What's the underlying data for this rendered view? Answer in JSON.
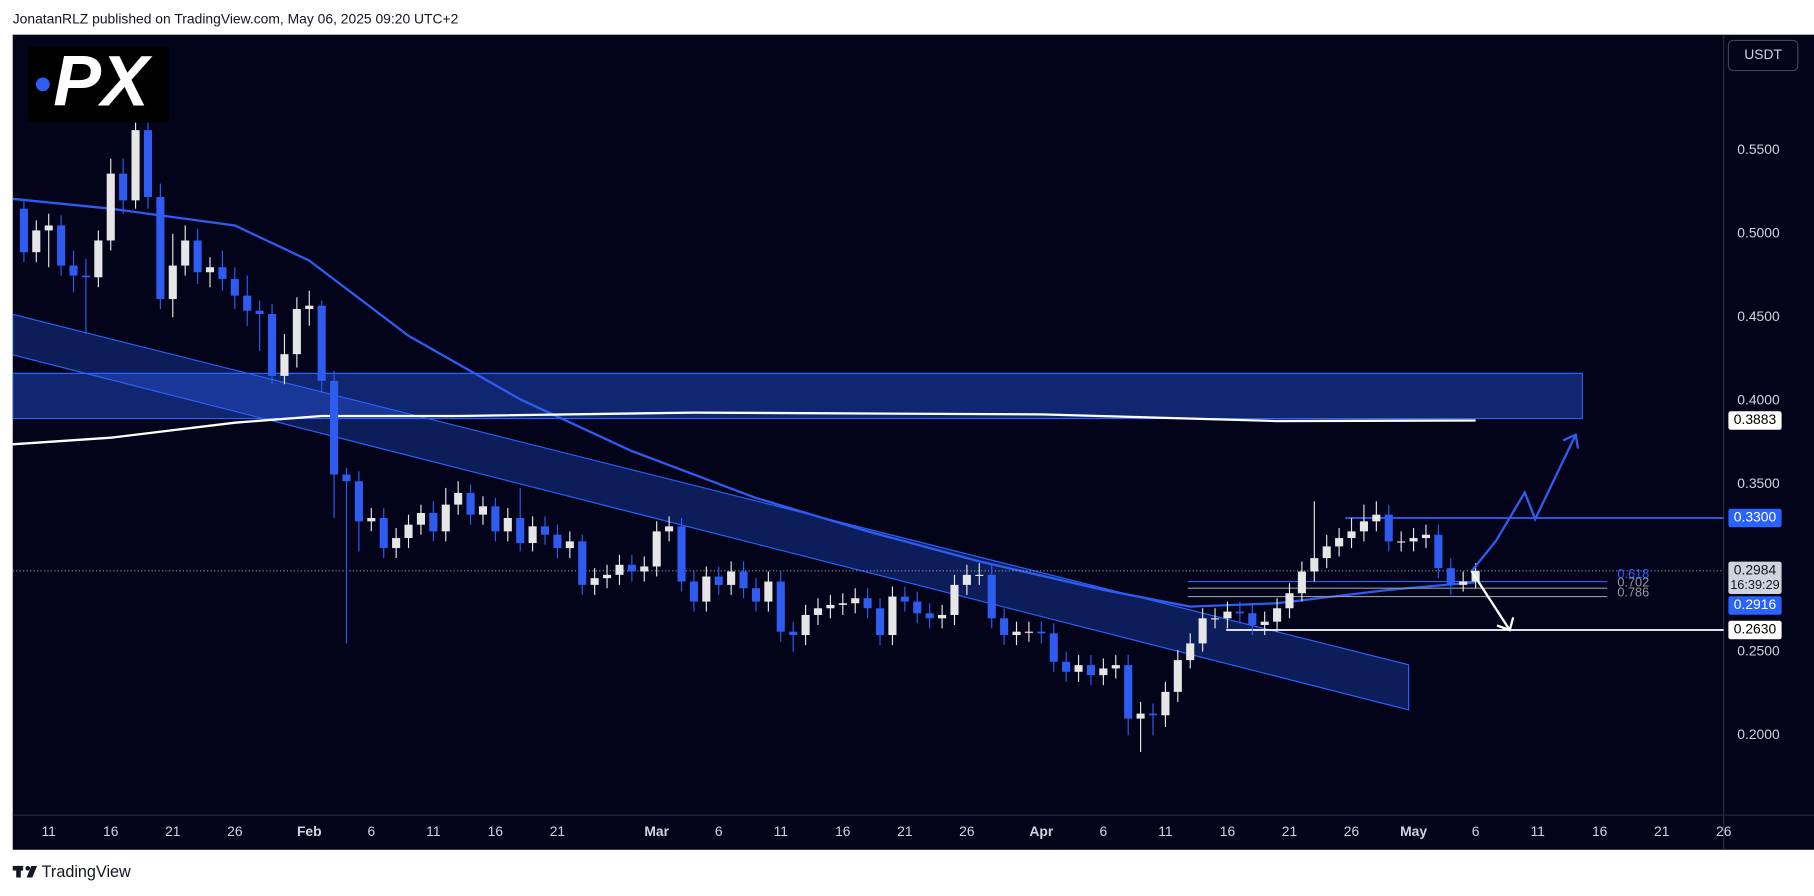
{
  "header": {
    "text": "JonatanRLZ published on TradingView.com, May 06, 2025 09:20 UTC+2"
  },
  "logo_text": "PX",
  "currency": "USDT",
  "footer": {
    "brand": "TradingView"
  },
  "chart_data": {
    "type": "candlestick",
    "up_color": "#e6e6e6",
    "down_color": "#2f5cf0",
    "x": [
      9,
      10,
      11,
      12,
      13,
      14,
      15,
      16,
      17,
      18,
      19,
      20,
      21,
      22,
      23,
      24,
      25,
      26,
      27,
      28,
      29,
      30,
      31,
      32,
      33,
      34,
      35,
      36,
      37,
      38,
      39,
      40,
      41,
      42,
      43,
      44,
      45,
      46,
      47,
      48,
      49,
      50,
      51,
      52,
      53,
      54,
      55,
      56,
      57,
      58,
      59,
      60,
      61,
      62,
      63,
      64,
      65,
      66,
      67,
      68,
      69,
      70,
      71,
      72,
      73,
      74,
      75,
      76,
      77,
      78,
      79,
      80,
      81,
      82,
      83,
      84,
      85,
      86,
      87,
      88,
      89,
      90,
      91,
      92,
      93,
      94,
      95,
      96,
      97,
      98,
      99,
      100,
      101,
      102,
      103,
      104,
      105,
      106,
      107,
      108,
      109,
      110,
      111,
      112,
      113,
      114,
      115,
      116,
      117,
      118,
      119,
      120,
      121,
      122,
      123,
      124,
      125,
      126
    ],
    "open": [
      0.515,
      0.489,
      0.502,
      0.505,
      0.481,
      0.475,
      0.474,
      0.496,
      0.536,
      0.52,
      0.562,
      0.522,
      0.461,
      0.481,
      0.496,
      0.477,
      0.48,
      0.473,
      0.463,
      0.454,
      0.452,
      0.415,
      0.428,
      0.455,
      0.457,
      0.412,
      0.356,
      0.352,
      0.328,
      0.33,
      0.312,
      0.318,
      0.326,
      0.333,
      0.322,
      0.338,
      0.345,
      0.332,
      0.337,
      0.322,
      0.33,
      0.315,
      0.325,
      0.32,
      0.312,
      0.316,
      0.29,
      0.294,
      0.296,
      0.302,
      0.298,
      0.301,
      0.322,
      0.325,
      0.292,
      0.28,
      0.295,
      0.29,
      0.298,
      0.288,
      0.28,
      0.292,
      0.262,
      0.26,
      0.272,
      0.276,
      0.278,
      0.279,
      0.282,
      0.276,
      0.26,
      0.283,
      0.28,
      0.273,
      0.27,
      0.272,
      0.29,
      0.296,
      0.296,
      0.27,
      0.26,
      0.262,
      0.262,
      0.261,
      0.244,
      0.238,
      0.242,
      0.236,
      0.24,
      0.242,
      0.21,
      0.213,
      0.212,
      0.226,
      0.245,
      0.255,
      0.27,
      0.27,
      0.274,
      0.273,
      0.266,
      0.268,
      0.276,
      0.285,
      0.298,
      0.306,
      0.313,
      0.318,
      0.322,
      0.328,
      0.332,
      0.316,
      0.316,
      0.318,
      0.32,
      0.3,
      0.29,
      0.292
    ],
    "high": [
      0.521,
      0.508,
      0.512,
      0.511,
      0.49,
      0.485,
      0.502,
      0.545,
      0.545,
      0.575,
      0.57,
      0.53,
      0.5,
      0.505,
      0.503,
      0.486,
      0.49,
      0.48,
      0.475,
      0.46,
      0.458,
      0.44,
      0.462,
      0.466,
      0.46,
      0.418,
      0.36,
      0.358,
      0.336,
      0.336,
      0.324,
      0.332,
      0.338,
      0.34,
      0.348,
      0.352,
      0.35,
      0.343,
      0.342,
      0.336,
      0.348,
      0.331,
      0.331,
      0.326,
      0.322,
      0.32,
      0.3,
      0.302,
      0.308,
      0.308,
      0.307,
      0.328,
      0.331,
      0.33,
      0.298,
      0.301,
      0.301,
      0.304,
      0.304,
      0.294,
      0.298,
      0.298,
      0.268,
      0.278,
      0.282,
      0.284,
      0.285,
      0.288,
      0.288,
      0.282,
      0.289,
      0.289,
      0.286,
      0.279,
      0.278,
      0.296,
      0.302,
      0.303,
      0.302,
      0.276,
      0.268,
      0.268,
      0.268,
      0.267,
      0.25,
      0.248,
      0.248,
      0.246,
      0.248,
      0.248,
      0.22,
      0.219,
      0.232,
      0.251,
      0.261,
      0.276,
      0.276,
      0.28,
      0.28,
      0.279,
      0.274,
      0.282,
      0.291,
      0.304,
      0.34,
      0.32,
      0.324,
      0.33,
      0.338,
      0.34,
      0.338,
      0.322,
      0.324,
      0.326,
      0.326,
      0.306,
      0.298,
      0.303
    ],
    "low": [
      0.483,
      0.483,
      0.48,
      0.475,
      0.465,
      0.44,
      0.468,
      0.49,
      0.512,
      0.515,
      0.515,
      0.455,
      0.45,
      0.475,
      0.47,
      0.468,
      0.466,
      0.455,
      0.445,
      0.43,
      0.41,
      0.41,
      0.42,
      0.445,
      0.405,
      0.33,
      0.255,
      0.31,
      0.322,
      0.306,
      0.306,
      0.312,
      0.32,
      0.316,
      0.316,
      0.332,
      0.326,
      0.326,
      0.316,
      0.316,
      0.31,
      0.31,
      0.314,
      0.306,
      0.306,
      0.284,
      0.284,
      0.288,
      0.29,
      0.292,
      0.292,
      0.295,
      0.316,
      0.286,
      0.274,
      0.274,
      0.284,
      0.284,
      0.282,
      0.274,
      0.274,
      0.256,
      0.25,
      0.254,
      0.266,
      0.27,
      0.272,
      0.273,
      0.27,
      0.254,
      0.254,
      0.274,
      0.267,
      0.264,
      0.264,
      0.266,
      0.284,
      0.29,
      0.264,
      0.254,
      0.254,
      0.256,
      0.255,
      0.238,
      0.232,
      0.232,
      0.23,
      0.23,
      0.234,
      0.2,
      0.19,
      0.2,
      0.205,
      0.22,
      0.24,
      0.25,
      0.264,
      0.264,
      0.267,
      0.26,
      0.26,
      0.262,
      0.27,
      0.28,
      0.292,
      0.3,
      0.307,
      0.312,
      0.316,
      0.322,
      0.31,
      0.31,
      0.31,
      0.312,
      0.294,
      0.284,
      0.286,
      0.288
    ],
    "close": [
      0.489,
      0.502,
      0.505,
      0.481,
      0.475,
      0.474,
      0.496,
      0.536,
      0.52,
      0.562,
      0.522,
      0.461,
      0.481,
      0.496,
      0.477,
      0.48,
      0.473,
      0.463,
      0.454,
      0.452,
      0.415,
      0.428,
      0.455,
      0.457,
      0.412,
      0.356,
      0.352,
      0.328,
      0.33,
      0.312,
      0.318,
      0.326,
      0.333,
      0.322,
      0.338,
      0.345,
      0.332,
      0.337,
      0.322,
      0.33,
      0.315,
      0.325,
      0.32,
      0.312,
      0.316,
      0.29,
      0.294,
      0.296,
      0.302,
      0.298,
      0.301,
      0.322,
      0.325,
      0.292,
      0.28,
      0.295,
      0.29,
      0.298,
      0.288,
      0.28,
      0.292,
      0.262,
      0.26,
      0.272,
      0.276,
      0.278,
      0.279,
      0.282,
      0.276,
      0.26,
      0.283,
      0.28,
      0.273,
      0.27,
      0.272,
      0.29,
      0.296,
      0.296,
      0.27,
      0.26,
      0.262,
      0.262,
      0.261,
      0.244,
      0.238,
      0.242,
      0.236,
      0.24,
      0.242,
      0.21,
      0.213,
      0.212,
      0.226,
      0.245,
      0.255,
      0.27,
      0.27,
      0.274,
      0.273,
      0.266,
      0.268,
      0.276,
      0.285,
      0.298,
      0.306,
      0.313,
      0.318,
      0.322,
      0.328,
      0.332,
      0.316,
      0.316,
      0.318,
      0.32,
      0.3,
      0.29,
      0.292,
      0.2984
    ],
    "xlim": [
      8.1,
      146
    ],
    "ylim": [
      0.1523,
      0.6191
    ],
    "xticks": [
      {
        "value": 11,
        "label": "11"
      },
      {
        "value": 16,
        "label": "16"
      },
      {
        "value": 21,
        "label": "21"
      },
      {
        "value": 26,
        "label": "26"
      },
      {
        "value": 32,
        "label": "Feb"
      },
      {
        "value": 37,
        "label": "6"
      },
      {
        "value": 42,
        "label": "11"
      },
      {
        "value": 47,
        "label": "16"
      },
      {
        "value": 52,
        "label": "21"
      },
      {
        "value": 60,
        "label": "Mar"
      },
      {
        "value": 65,
        "label": "6"
      },
      {
        "value": 70,
        "label": "11"
      },
      {
        "value": 75,
        "label": "16"
      },
      {
        "value": 80,
        "label": "21"
      },
      {
        "value": 85,
        "label": "26"
      },
      {
        "value": 91,
        "label": "Apr"
      },
      {
        "value": 96,
        "label": "6"
      },
      {
        "value": 101,
        "label": "11"
      },
      {
        "value": 106,
        "label": "16"
      },
      {
        "value": 111,
        "label": "21"
      },
      {
        "value": 116,
        "label": "26"
      },
      {
        "value": 121,
        "label": "May"
      },
      {
        "value": 126,
        "label": "6"
      },
      {
        "value": 131,
        "label": "11"
      },
      {
        "value": 136,
        "label": "16"
      },
      {
        "value": 141,
        "label": "21"
      },
      {
        "value": 146,
        "label": "26"
      }
    ],
    "yticks": [
      {
        "value": 0.2,
        "label": "0.2000"
      },
      {
        "value": 0.25,
        "label": "0.2500"
      },
      {
        "value": 0.3,
        "label": "0.3000"
      },
      {
        "value": 0.35,
        "label": "0.3500"
      },
      {
        "value": 0.4,
        "label": "0.4000"
      },
      {
        "value": 0.45,
        "label": "0.4500"
      },
      {
        "value": 0.5,
        "label": "0.5000"
      },
      {
        "value": 0.55,
        "label": "0.5500"
      }
    ],
    "bands": [
      {
        "x": [
          8.1,
          120.6
        ],
        "upper": [
          0.4518,
          0.2422
        ],
        "lower": [
          0.4276,
          0.2152
        ],
        "fill": "rgba(41,98,255,0.28)",
        "stroke": "#2962ff"
      },
      {
        "x": [
          8.1,
          134.6
        ],
        "upper": [
          0.4165,
          0.4165
        ],
        "lower": [
          0.3895,
          0.3895
        ],
        "fill": "rgba(41,98,255,0.38)",
        "stroke": "#2962ff"
      }
    ],
    "lines": [
      {
        "color": "#2f5cf0",
        "x": [
          8,
          16,
          26,
          32,
          40,
          49,
          58,
          68,
          77,
          86,
          96,
          103,
          110,
          119,
          126
        ],
        "values": [
          0.521,
          0.515,
          0.505,
          0.484,
          0.439,
          0.401,
          0.37,
          0.342,
          0.322,
          0.304,
          0.287,
          0.277,
          0.279,
          0.287,
          0.2916
        ]
      },
      {
        "color": "#ffffff",
        "x": [
          8,
          16,
          26,
          33,
          44,
          63,
          91,
          110,
          126
        ],
        "values": [
          0.374,
          0.378,
          0.387,
          0.391,
          0.391,
          0.393,
          0.392,
          0.388,
          0.3883
        ]
      }
    ],
    "levels": [
      {
        "value": 0.33,
        "x": [
          115.5,
          146
        ],
        "color": "#2962ff"
      },
      {
        "value": 0.263,
        "x": [
          105.9,
          146
        ],
        "color": "#ffffff"
      }
    ],
    "fib_levels": [
      {
        "value": 0.292,
        "label": "0.618",
        "color": "#2962ff"
      },
      {
        "value": 0.288,
        "label": "0.702",
        "color": "#9598a1"
      },
      {
        "value": 0.283,
        "label": "0.786",
        "color": "#9598a1"
      }
    ],
    "fib_x": [
      102.8,
      136.6
    ],
    "countdown": "16:39:29",
    "price_labels": [
      {
        "value": 0.3883,
        "fill": "#ffffff",
        "text_color": "#000000"
      },
      {
        "value": 0.33,
        "label": "0.3300",
        "fill": "#2962ff",
        "text_color": "#ffffff"
      },
      {
        "value": 0.2984,
        "fill": "#d1d4dc",
        "text_color": "#131722"
      },
      {
        "value": 0.2916,
        "fill": "#2962ff",
        "text_color": "#ffffff"
      },
      {
        "value": 0.263,
        "label": "0.2630",
        "fill": "#ffffff",
        "text_color": "#000000"
      }
    ]
  }
}
